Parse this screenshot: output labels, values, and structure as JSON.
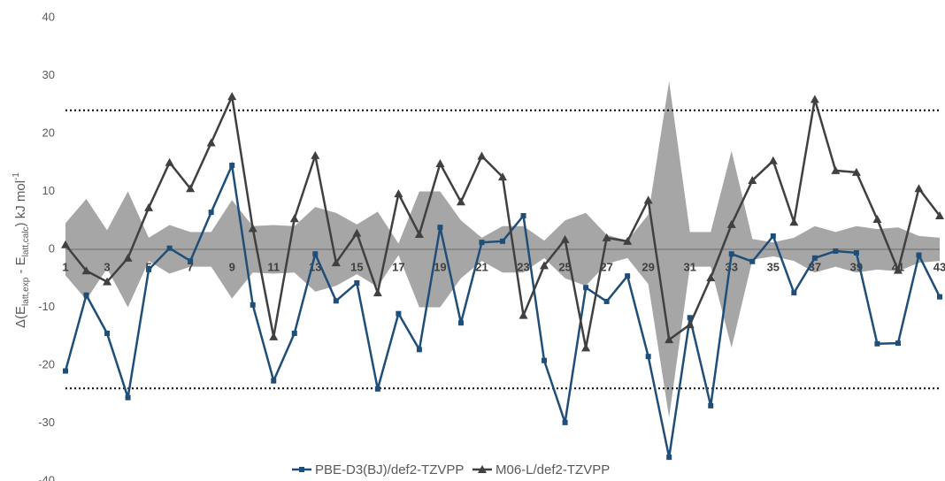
{
  "chart_data": {
    "type": "line",
    "y_label_parts": [
      "Δ(E",
      "latt,exp",
      " - E",
      "latt,calc",
      ") kJ mol",
      "-1"
    ],
    "categories": [
      "1",
      null,
      "3",
      null,
      "5",
      null,
      "7",
      null,
      "9",
      null,
      "11",
      null,
      "13",
      null,
      "15",
      null,
      "17",
      null,
      "19",
      null,
      "21",
      null,
      "23",
      null,
      "25",
      null,
      "27",
      null,
      "29",
      null,
      "31",
      null,
      "33",
      null,
      "35",
      null,
      "37",
      null,
      "39",
      null,
      "41",
      null,
      "43"
    ],
    "ylim": [
      -40,
      40
    ],
    "yticks": [
      -40,
      -30,
      -20,
      -10,
      0,
      10,
      20,
      30,
      40
    ],
    "reference_lines": [
      24,
      -24
    ],
    "band": {
      "color": "#a6a6a6",
      "values": [
        4.5,
        8.7,
        3.3,
        10,
        2,
        4.2,
        3,
        3,
        8.5,
        4,
        4.2,
        4,
        7.3,
        6.3,
        4.3,
        6.5,
        1,
        10,
        10,
        5,
        2,
        4,
        4,
        1.5,
        5,
        6.3,
        2.5,
        1.5,
        6,
        29,
        3,
        3,
        17,
        1.8,
        1.2,
        2,
        4,
        3,
        4,
        3.5,
        3.8,
        2.3,
        2
      ]
    },
    "series": [
      {
        "name": "PBE-D3(BJ)/def2-TZVPP",
        "color": "#1f4e79",
        "marker": "square",
        "values": [
          -21,
          -7.9,
          -14.5,
          -25.6,
          -3.5,
          0.2,
          -2,
          6.4,
          14.5,
          -9.6,
          -22.7,
          -14.5,
          -0.8,
          -8.9,
          -5.8,
          -24.1,
          -11.1,
          -17.3,
          3.8,
          -12.7,
          1.2,
          1.4,
          5.8,
          -19.2,
          -29.9,
          -6.6,
          -9,
          -4.6,
          -18.5,
          -35.9,
          -11.8,
          -27,
          -0.8,
          -2.1,
          2.3,
          -7.5,
          -1.5,
          -0.3,
          -0.6,
          -16.3,
          -16.2,
          -1,
          -8.2
        ]
      },
      {
        "name": "M06-L/def2-TZVPP",
        "color": "#404040",
        "marker": "triangle",
        "values": [
          0.8,
          -3.7,
          -5.6,
          -1.5,
          7.2,
          15,
          10.5,
          18.4,
          26.4,
          3.6,
          -15.1,
          5.3,
          16.2,
          -2.3,
          2.8,
          -7.5,
          9.6,
          2.6,
          14.8,
          8.2,
          16.1,
          12.5,
          -11.4,
          -2.8,
          1.7,
          -17,
          2,
          1.4,
          8.5,
          -15.6,
          -13,
          -4.9,
          4.3,
          11.9,
          15.3,
          4.7,
          25.9,
          13.6,
          13.3,
          5.2,
          -3.6,
          10.5,
          5.8
        ]
      }
    ]
  }
}
